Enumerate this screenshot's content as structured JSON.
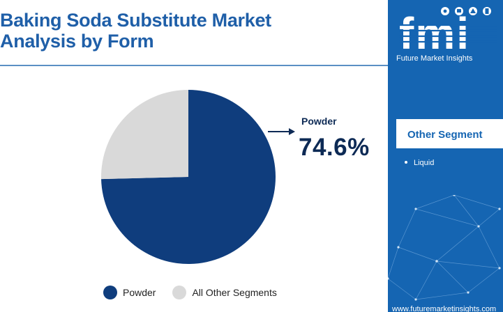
{
  "header": {
    "title_line1": "Baking Soda Substitute Market",
    "title_line2": "Analysis by Form"
  },
  "callout": {
    "label": "Powder",
    "value": "74.6%"
  },
  "chart_data": {
    "type": "pie",
    "title": "Baking Soda Substitute Market Analysis by Form",
    "categories": [
      "Powder",
      "All Other Segments"
    ],
    "values": [
      74.6,
      25.4
    ],
    "colors": [
      "#0f3d7d",
      "#d9d9d9"
    ],
    "legend": "bottom"
  },
  "legend": {
    "items": [
      {
        "label": "Powder",
        "color": "#0f3d7d"
      },
      {
        "label": "All Other Segments",
        "color": "#d9d9d9"
      }
    ]
  },
  "sidebar": {
    "logo_letters": "fmi",
    "logo_tagline": "Future Market Insights",
    "heading": "Other Segment",
    "segments": [
      "Liquid"
    ],
    "url": "www.futuremarketinsights.com",
    "bg_color": "#1565b2"
  }
}
